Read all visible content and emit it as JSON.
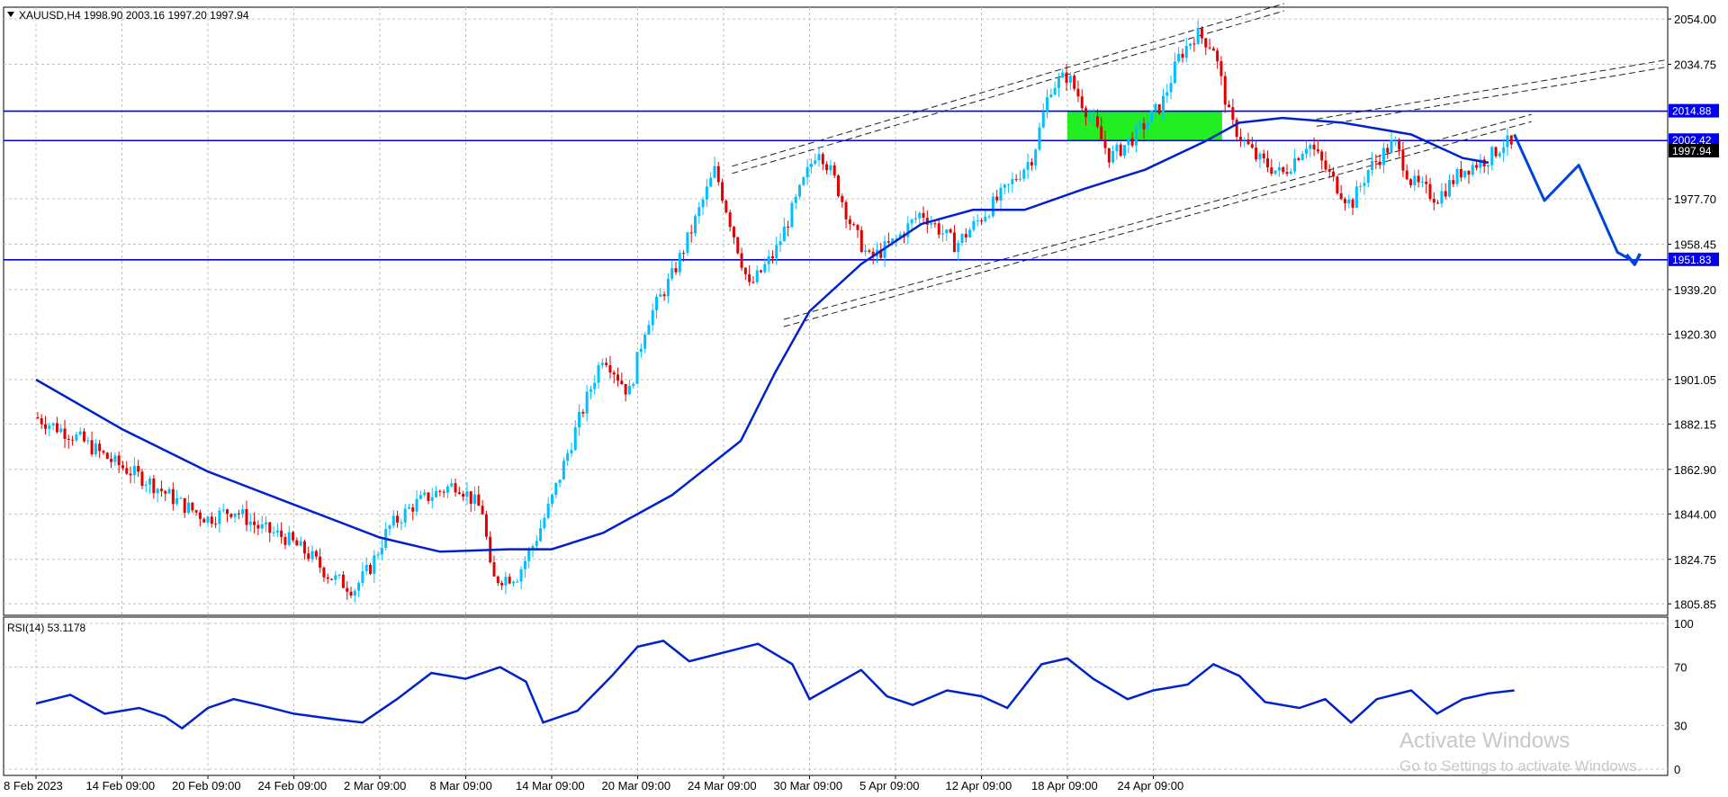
{
  "symbol_info": "XAUUSD,H4  1998.90 2003.16 1997.20 1997.94",
  "rsi_label": "RSI(14) 53.1178",
  "watermark": {
    "title": "Activate Windows",
    "subtitle": "Go to Settings to activate Windows."
  },
  "colors": {
    "bull": "#00bfff",
    "bear": "#e00000",
    "ma": "#0022cc",
    "hline": "#0000ee",
    "zone": "#22ee22",
    "grid": "#c0c0c0",
    "tag_bg": "#0000ee",
    "current_tag_bg": "#000000",
    "rsi_line": "#0022cc",
    "projection": "#0044dd"
  },
  "chart_data": [
    {
      "type": "candlestick",
      "symbol": "XAUUSD",
      "timeframe": "H4",
      "ohlc_current": {
        "open": 1998.9,
        "high": 2003.16,
        "low": 1997.2,
        "close": 1997.94
      },
      "x_categories": [
        "8 Feb 2023",
        "14 Feb 09:00",
        "20 Feb 09:00",
        "24 Feb 09:00",
        "2 Mar 09:00",
        "8 Mar 09:00",
        "14 Mar 09:00",
        "20 Mar 09:00",
        "24 Mar 09:00",
        "30 Mar 09:00",
        "5 Apr 09:00",
        "12 Apr 09:00",
        "18 Apr 09:00",
        "24 Apr 09:00"
      ],
      "y_ticks": [
        "2054.00",
        "2034.75",
        "1977.70",
        "1958.45",
        "1939.20",
        "1920.30",
        "1901.05",
        "1882.15",
        "1862.90",
        "1844.00",
        "1824.75",
        "1805.85"
      ],
      "ylim": [
        1801,
        2059
      ],
      "horizontal_levels": [
        {
          "label": "2014.88",
          "value": 2014.88
        },
        {
          "label": "2002.42",
          "value": 2002.42
        },
        {
          "label": "1951.83",
          "value": 1951.83
        }
      ],
      "current_price": {
        "label": "1997.94",
        "value": 1997.94
      },
      "zone": {
        "from": 2002.42,
        "to": 2014.88,
        "start_category": 12,
        "end_category": 13.8
      },
      "price_path": [
        [
          0,
          1885
        ],
        [
          0.5,
          1876
        ],
        [
          0.9,
          1866
        ],
        [
          1.3,
          1858
        ],
        [
          1.7,
          1848
        ],
        [
          2.0,
          1842
        ],
        [
          2.3,
          1846
        ],
        [
          2.6,
          1838
        ],
        [
          2.9,
          1834
        ],
        [
          3.2,
          1826
        ],
        [
          3.4,
          1818
        ],
        [
          3.7,
          1812
        ],
        [
          3.9,
          1822
        ],
        [
          4.1,
          1838
        ],
        [
          4.4,
          1848
        ],
        [
          4.6,
          1852
        ],
        [
          4.9,
          1857
        ],
        [
          5.2,
          1845
        ],
        [
          5.3,
          1816
        ],
        [
          5.6,
          1818
        ],
        [
          5.8,
          1832
        ],
        [
          6.0,
          1850
        ],
        [
          6.3,
          1882
        ],
        [
          6.6,
          1912
        ],
        [
          6.9,
          1895
        ],
        [
          7.1,
          1925
        ],
        [
          7.4,
          1945
        ],
        [
          7.6,
          1962
        ],
        [
          7.9,
          1990
        ],
        [
          8.1,
          1965
        ],
        [
          8.3,
          1940
        ],
        [
          8.6,
          1955
        ],
        [
          8.9,
          1982
        ],
        [
          9.1,
          2000
        ],
        [
          9.3,
          1985
        ],
        [
          9.5,
          1965
        ],
        [
          9.7,
          1952
        ],
        [
          10.0,
          1960
        ],
        [
          10.3,
          1972
        ],
        [
          10.7,
          1958
        ],
        [
          11.0,
          1970
        ],
        [
          11.3,
          1982
        ],
        [
          11.6,
          1996
        ],
        [
          11.8,
          2025
        ],
        [
          12.0,
          2030
        ],
        [
          12.3,
          2010
        ],
        [
          12.5,
          1995
        ],
        [
          12.8,
          2005
        ],
        [
          13.1,
          2018
        ],
        [
          13.3,
          2038
        ],
        [
          13.5,
          2048
        ],
        [
          13.7,
          2042
        ],
        [
          13.9,
          2010
        ],
        [
          14.2,
          1995
        ],
        [
          14.5,
          1988
        ],
        [
          14.8,
          2002
        ],
        [
          15.1,
          1985
        ],
        [
          15.3,
          1975
        ],
        [
          15.5,
          1990
        ],
        [
          15.8,
          2002
        ],
        [
          16.0,
          1985
        ],
        [
          16.3,
          1978
        ],
        [
          16.6,
          1990
        ],
        [
          16.9,
          1995
        ],
        [
          17.1,
          2002
        ],
        [
          17.2,
          1998
        ]
      ],
      "moving_average": [
        [
          0,
          1901
        ],
        [
          1.0,
          1880
        ],
        [
          2.0,
          1862
        ],
        [
          3.0,
          1848
        ],
        [
          4.0,
          1834
        ],
        [
          4.7,
          1828
        ],
        [
          5.5,
          1829
        ],
        [
          6.0,
          1829
        ],
        [
          6.6,
          1836
        ],
        [
          7.4,
          1852
        ],
        [
          8.2,
          1875
        ],
        [
          8.6,
          1904
        ],
        [
          9.0,
          1930
        ],
        [
          9.6,
          1950
        ],
        [
          10.3,
          1967
        ],
        [
          10.9,
          1973
        ],
        [
          11.5,
          1973
        ],
        [
          12.2,
          1982
        ],
        [
          12.9,
          1990
        ],
        [
          13.6,
          2002
        ],
        [
          14.0,
          2010
        ],
        [
          14.5,
          2012
        ],
        [
          15.2,
          2010
        ],
        [
          16.0,
          2005
        ],
        [
          16.6,
          1995
        ],
        [
          16.9,
          1993
        ]
      ],
      "channel_upper": [
        [
          8.1,
          1990
        ],
        [
          14.8,
          2062
        ]
      ],
      "channel_lower": [
        [
          8.7,
          1925
        ],
        [
          17.4,
          2012
        ]
      ],
      "channel_extension": [
        [
          14.9,
          2010
        ],
        [
          23.0,
          2060
        ]
      ],
      "projection_path": [
        [
          17.2,
          2005
        ],
        [
          17.55,
          1977
        ],
        [
          17.95,
          1992
        ],
        [
          18.4,
          1955
        ],
        [
          18.6,
          1951
        ]
      ]
    },
    {
      "type": "line",
      "title": "RSI(14) 53.1178",
      "value": 53.1178,
      "y_ticks": [
        "100",
        "70",
        "30",
        "0"
      ],
      "ylim": [
        0,
        100
      ],
      "values": [
        [
          0,
          45
        ],
        [
          0.4,
          51
        ],
        [
          0.8,
          38
        ],
        [
          1.2,
          42
        ],
        [
          1.5,
          36
        ],
        [
          1.7,
          28
        ],
        [
          2.0,
          42
        ],
        [
          2.3,
          48
        ],
        [
          2.6,
          44
        ],
        [
          3.0,
          38
        ],
        [
          3.5,
          34
        ],
        [
          3.8,
          32
        ],
        [
          4.2,
          48
        ],
        [
          4.6,
          66
        ],
        [
          5.0,
          62
        ],
        [
          5.4,
          70
        ],
        [
          5.7,
          60
        ],
        [
          5.9,
          32
        ],
        [
          6.3,
          40
        ],
        [
          6.7,
          64
        ],
        [
          7.0,
          84
        ],
        [
          7.3,
          88
        ],
        [
          7.6,
          74
        ],
        [
          8.0,
          80
        ],
        [
          8.4,
          86
        ],
        [
          8.8,
          72
        ],
        [
          9.0,
          48
        ],
        [
          9.3,
          58
        ],
        [
          9.6,
          68
        ],
        [
          9.9,
          50
        ],
        [
          10.2,
          44
        ],
        [
          10.6,
          54
        ],
        [
          11.0,
          50
        ],
        [
          11.3,
          42
        ],
        [
          11.7,
          72
        ],
        [
          12.0,
          76
        ],
        [
          12.3,
          62
        ],
        [
          12.7,
          48
        ],
        [
          13.0,
          54
        ],
        [
          13.4,
          58
        ],
        [
          13.7,
          72
        ],
        [
          14.0,
          64
        ],
        [
          14.3,
          46
        ],
        [
          14.7,
          42
        ],
        [
          15.0,
          48
        ],
        [
          15.3,
          32
        ],
        [
          15.6,
          48
        ],
        [
          16.0,
          54
        ],
        [
          16.3,
          38
        ],
        [
          16.6,
          48
        ],
        [
          16.9,
          52
        ],
        [
          17.2,
          54
        ]
      ]
    }
  ]
}
